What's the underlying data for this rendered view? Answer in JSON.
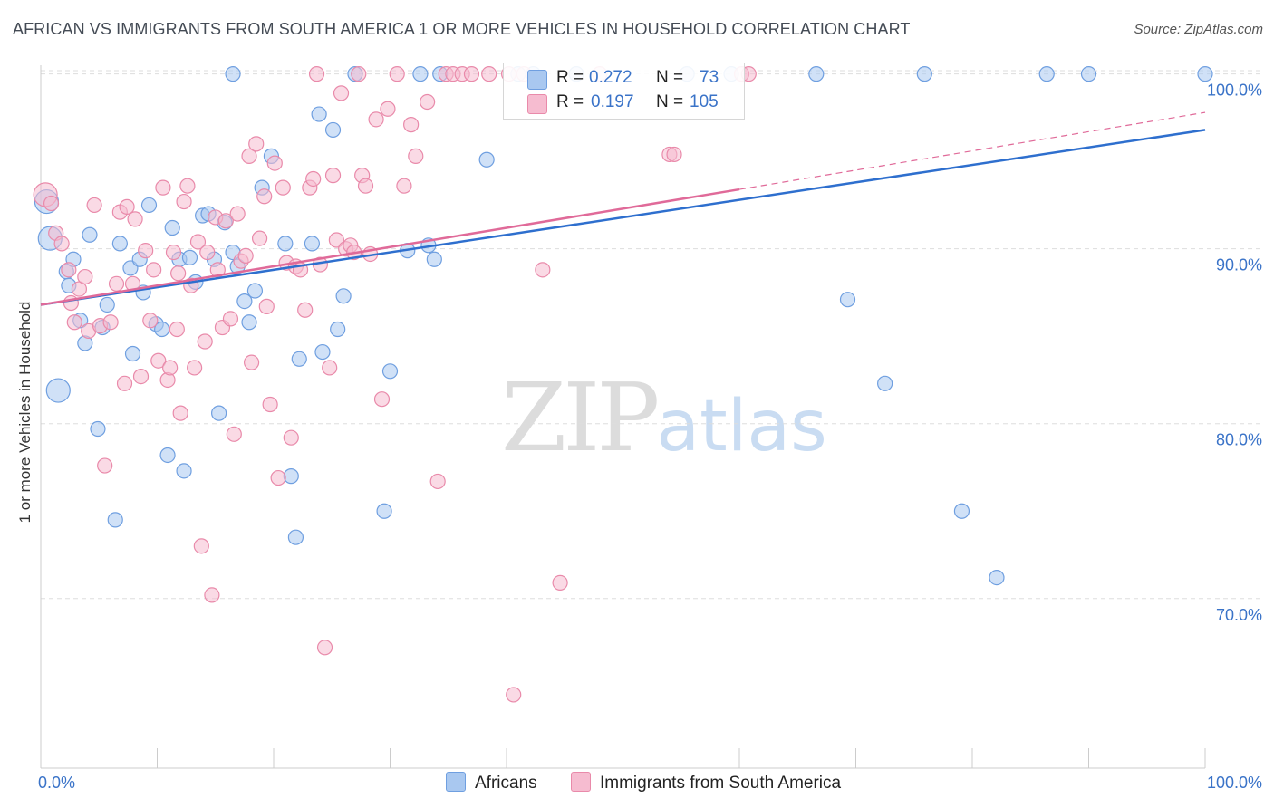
{
  "title": "AFRICAN VS IMMIGRANTS FROM SOUTH AMERICA 1 OR MORE VEHICLES IN HOUSEHOLD CORRELATION CHART",
  "source": "Source: ZipAtlas.com",
  "watermark": {
    "zip": "ZIP",
    "atlas": "atlas"
  },
  "legend": {
    "r_label": "R =",
    "n_label": "N =",
    "rows": [
      {
        "r": "0.272",
        "n": "73"
      },
      {
        "r": "0.197",
        "n": "105"
      }
    ]
  },
  "bottom_legend": [
    "Africans",
    "Immigrants from South America"
  ],
  "colors": {
    "blue_fill": "#a9c8f0",
    "blue_stroke": "#6f9fe0",
    "blue_line": "#2e6fce",
    "pink_fill": "#f6bcd0",
    "pink_stroke": "#e98aaa",
    "pink_line": "#e06a99",
    "tick_label": "#3a73c8",
    "grid": "#dddddd"
  },
  "chart_data": {
    "type": "scatter",
    "xlabel": "",
    "ylabel": "1 or more Vehicles in Household",
    "xlim": [
      0,
      100
    ],
    "ylim": [
      60.3,
      100.5
    ],
    "x_tick_labels": [
      "0.0%",
      "100.0%"
    ],
    "y_ticks": [
      70,
      80,
      90,
      100
    ],
    "y_tick_labels": [
      "70.0%",
      "80.0%",
      "90.0%",
      "100.0%"
    ],
    "grid": true,
    "legend_position": "top-center",
    "series": [
      {
        "name": "Africans",
        "color": "#6f9fe0",
        "r": 0.272,
        "n": 73,
        "trend": {
          "x": [
            0,
            100
          ],
          "y": [
            86.8,
            96.8
          ],
          "style": "solid"
        },
        "points": [
          [
            0.5,
            92.7
          ],
          [
            0.8,
            90.6
          ],
          [
            1.5,
            81.9
          ],
          [
            2.2,
            88.7
          ],
          [
            2.4,
            87.9
          ],
          [
            2.8,
            89.4
          ],
          [
            3.4,
            85.9
          ],
          [
            3.8,
            84.6
          ],
          [
            4.2,
            90.8
          ],
          [
            4.9,
            79.7
          ],
          [
            5.3,
            85.5
          ],
          [
            5.7,
            86.8
          ],
          [
            6.4,
            74.5
          ],
          [
            6.8,
            90.3
          ],
          [
            7.7,
            88.9
          ],
          [
            7.9,
            84.0
          ],
          [
            8.5,
            89.4
          ],
          [
            8.8,
            87.5
          ],
          [
            9.3,
            92.5
          ],
          [
            9.9,
            85.7
          ],
          [
            10.4,
            85.4
          ],
          [
            10.9,
            78.2
          ],
          [
            11.3,
            91.2
          ],
          [
            11.9,
            89.4
          ],
          [
            12.3,
            77.3
          ],
          [
            12.8,
            89.5
          ],
          [
            13.3,
            88.1
          ],
          [
            13.9,
            91.9
          ],
          [
            14.4,
            92.0
          ],
          [
            14.9,
            89.4
          ],
          [
            15.3,
            80.6
          ],
          [
            15.8,
            91.5
          ],
          [
            16.5,
            89.8
          ],
          [
            16.9,
            89.0
          ],
          [
            17.5,
            87.0
          ],
          [
            17.9,
            85.8
          ],
          [
            18.4,
            87.6
          ],
          [
            19.0,
            93.5
          ],
          [
            19.8,
            95.3
          ],
          [
            21.0,
            90.3
          ],
          [
            21.5,
            77.0
          ],
          [
            21.9,
            73.5
          ],
          [
            22.2,
            83.7
          ],
          [
            23.3,
            90.3
          ],
          [
            23.9,
            97.7
          ],
          [
            24.2,
            84.1
          ],
          [
            25.1,
            96.8
          ],
          [
            25.5,
            85.4
          ],
          [
            26.0,
            87.3
          ],
          [
            27.0,
            100.0
          ],
          [
            29.5,
            75.0
          ],
          [
            30.0,
            83.0
          ],
          [
            31.5,
            89.9
          ],
          [
            32.6,
            100.0
          ],
          [
            33.3,
            90.2
          ],
          [
            33.8,
            89.4
          ],
          [
            34.3,
            100.0
          ],
          [
            38.3,
            95.1
          ],
          [
            41.0,
            100.0
          ],
          [
            42.3,
            100.0
          ],
          [
            46.0,
            100.0
          ],
          [
            55.5,
            100.0
          ],
          [
            59.3,
            100.0
          ],
          [
            66.6,
            100.0
          ],
          [
            69.3,
            87.1
          ],
          [
            72.5,
            82.3
          ],
          [
            75.9,
            100.0
          ],
          [
            79.1,
            75.0
          ],
          [
            82.1,
            71.2
          ],
          [
            86.4,
            100.0
          ],
          [
            90.0,
            100.0
          ],
          [
            100.0,
            100.0
          ],
          [
            16.5,
            100.0
          ]
        ]
      },
      {
        "name": "Immigrants from South America",
        "color": "#e98aaa",
        "r": 0.197,
        "n": 105,
        "trend": {
          "x": [
            0,
            60
          ],
          "y": [
            86.8,
            93.4
          ],
          "style": "solid",
          "extended": {
            "x": [
              60,
              100
            ],
            "y": [
              93.4,
              97.8
            ],
            "style": "dashed"
          }
        },
        "points": [
          [
            0.4,
            93.1
          ],
          [
            0.9,
            92.6
          ],
          [
            1.3,
            90.9
          ],
          [
            1.8,
            90.3
          ],
          [
            2.4,
            88.8
          ],
          [
            2.6,
            86.9
          ],
          [
            2.9,
            85.8
          ],
          [
            3.3,
            87.7
          ],
          [
            3.8,
            88.4
          ],
          [
            4.1,
            85.3
          ],
          [
            4.6,
            92.5
          ],
          [
            5.1,
            85.6
          ],
          [
            5.5,
            77.6
          ],
          [
            6.0,
            85.8
          ],
          [
            6.5,
            88.0
          ],
          [
            6.8,
            92.1
          ],
          [
            7.2,
            82.3
          ],
          [
            7.4,
            92.4
          ],
          [
            7.9,
            88.0
          ],
          [
            8.1,
            91.7
          ],
          [
            8.6,
            82.7
          ],
          [
            9.0,
            89.9
          ],
          [
            9.4,
            85.9
          ],
          [
            9.7,
            88.8
          ],
          [
            10.1,
            83.6
          ],
          [
            10.5,
            93.5
          ],
          [
            10.9,
            82.5
          ],
          [
            11.1,
            83.2
          ],
          [
            11.4,
            89.8
          ],
          [
            11.7,
            85.4
          ],
          [
            12.0,
            80.6
          ],
          [
            12.3,
            92.7
          ],
          [
            12.6,
            93.6
          ],
          [
            12.9,
            87.9
          ],
          [
            13.2,
            83.2
          ],
          [
            13.5,
            90.4
          ],
          [
            13.8,
            73.0
          ],
          [
            14.1,
            84.7
          ],
          [
            14.3,
            89.8
          ],
          [
            14.7,
            70.2
          ],
          [
            15.0,
            91.8
          ],
          [
            15.2,
            88.8
          ],
          [
            15.6,
            85.5
          ],
          [
            15.9,
            91.6
          ],
          [
            16.3,
            86.0
          ],
          [
            16.6,
            79.4
          ],
          [
            16.9,
            92.0
          ],
          [
            17.2,
            89.3
          ],
          [
            17.6,
            89.6
          ],
          [
            17.9,
            95.3
          ],
          [
            18.1,
            83.5
          ],
          [
            18.5,
            96.0
          ],
          [
            18.8,
            90.6
          ],
          [
            19.2,
            93.0
          ],
          [
            19.4,
            86.7
          ],
          [
            19.7,
            81.1
          ],
          [
            20.1,
            94.9
          ],
          [
            20.4,
            76.9
          ],
          [
            20.8,
            93.5
          ],
          [
            21.1,
            89.2
          ],
          [
            21.5,
            79.2
          ],
          [
            21.9,
            89.0
          ],
          [
            22.3,
            88.8
          ],
          [
            22.7,
            86.5
          ],
          [
            23.1,
            93.5
          ],
          [
            23.4,
            94.0
          ],
          [
            23.7,
            100.0
          ],
          [
            24.0,
            89.1
          ],
          [
            24.4,
            67.2
          ],
          [
            24.8,
            83.2
          ],
          [
            25.1,
            94.2
          ],
          [
            25.4,
            90.5
          ],
          [
            25.8,
            98.9
          ],
          [
            26.2,
            90.0
          ],
          [
            26.6,
            90.2
          ],
          [
            26.9,
            89.8
          ],
          [
            27.3,
            100.0
          ],
          [
            27.6,
            94.2
          ],
          [
            27.9,
            93.6
          ],
          [
            28.3,
            89.7
          ],
          [
            28.8,
            97.4
          ],
          [
            29.3,
            81.4
          ],
          [
            29.8,
            98.0
          ],
          [
            30.6,
            100.0
          ],
          [
            31.2,
            93.6
          ],
          [
            31.8,
            97.1
          ],
          [
            32.2,
            95.3
          ],
          [
            33.2,
            98.4
          ],
          [
            34.1,
            76.7
          ],
          [
            34.8,
            100.0
          ],
          [
            35.4,
            100.0
          ],
          [
            36.2,
            100.0
          ],
          [
            37.0,
            100.0
          ],
          [
            38.5,
            100.0
          ],
          [
            40.2,
            100.0
          ],
          [
            40.6,
            64.5
          ],
          [
            41.5,
            100.0
          ],
          [
            43.1,
            88.8
          ],
          [
            44.6,
            70.9
          ],
          [
            48.0,
            100.0
          ],
          [
            54.0,
            95.4
          ],
          [
            54.4,
            95.4
          ],
          [
            60.2,
            100.0
          ],
          [
            60.8,
            100.0
          ],
          [
            11.8,
            88.6
          ]
        ]
      }
    ]
  }
}
